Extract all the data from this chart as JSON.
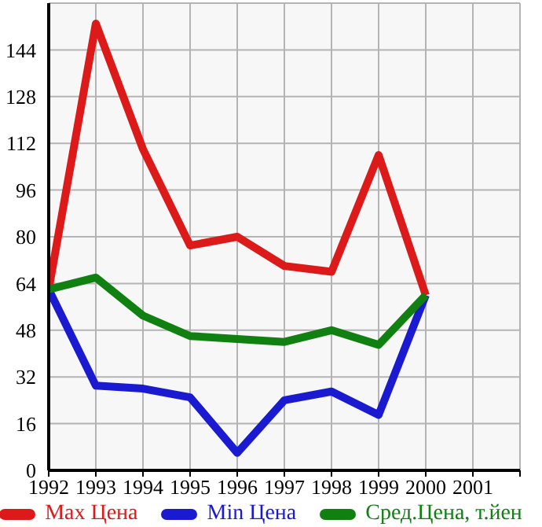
{
  "chart_data": {
    "type": "line",
    "x": [
      1992,
      1993,
      1994,
      1995,
      1996,
      1997,
      1998,
      1999,
      2000
    ],
    "series": [
      {
        "name": "Max Цена",
        "color": "#dd1a1a",
        "values": [
          62,
          153,
          110,
          77,
          80,
          70,
          68,
          108,
          60
        ]
      },
      {
        "name": "Min Цена",
        "color": "#1a1ad0",
        "values": [
          62,
          29,
          28,
          25,
          6,
          24,
          27,
          19,
          60
        ]
      },
      {
        "name": "Сред.Цена, т.йен",
        "color": "#108010",
        "values": [
          62,
          66,
          53,
          46,
          45,
          44,
          48,
          43,
          60
        ]
      }
    ],
    "xlim": [
      1992,
      2002
    ],
    "xticks": [
      1992,
      1993,
      1994,
      1995,
      1996,
      1997,
      1998,
      1999,
      2000,
      2001,
      {
        "value": 2002,
        "label": null
      }
    ],
    "ylim": [
      0,
      160
    ],
    "yticks": [
      0,
      16,
      32,
      48,
      64,
      80,
      96,
      112,
      128,
      144,
      {
        "value": 160,
        "label": null
      }
    ],
    "grid": true,
    "legend": "bottom",
    "marker": "none",
    "line_style": "solid"
  }
}
